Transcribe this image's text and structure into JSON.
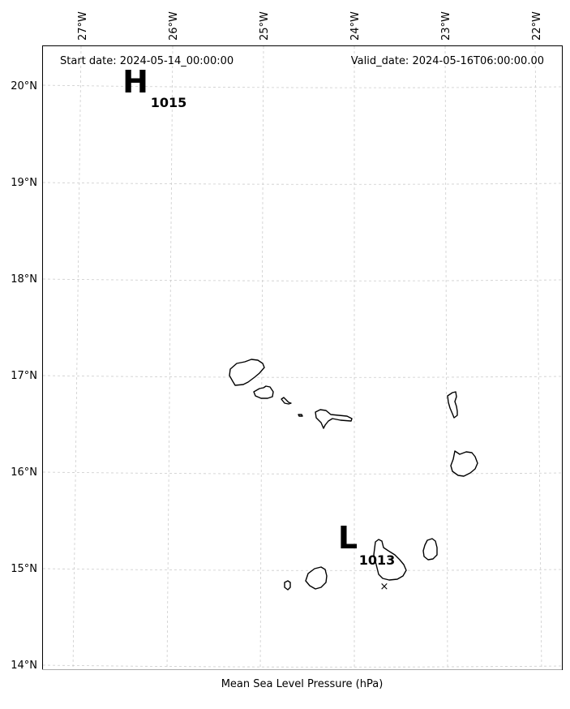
{
  "header": {
    "start_date": "Start date: 2024-05-14_00:00:00",
    "valid_date": "Valid_date: 2024-05-16T06:00:00.00"
  },
  "axes": {
    "lon_labels": [
      "27°W",
      "26°W",
      "25°W",
      "24°W",
      "23°W",
      "22°W"
    ],
    "lat_labels": [
      "20°N",
      "19°N",
      "18°N",
      "17°N",
      "16°N",
      "15°N",
      "14°N"
    ],
    "gridlines": true
  },
  "pressure_centers": [
    {
      "type": "H",
      "value": "1015",
      "lon": -26.4,
      "lat": 20.05
    },
    {
      "type": "L",
      "value": "1013",
      "lon": -24.1,
      "lat": 15.3
    }
  ],
  "marker": {
    "symbol": "×",
    "lon": -23.7,
    "lat": 14.82
  },
  "caption": "Mean Sea Level Pressure (hPa)",
  "colors": {
    "grid": "#cccccc",
    "coast": "#000000",
    "frame": "#000000"
  }
}
